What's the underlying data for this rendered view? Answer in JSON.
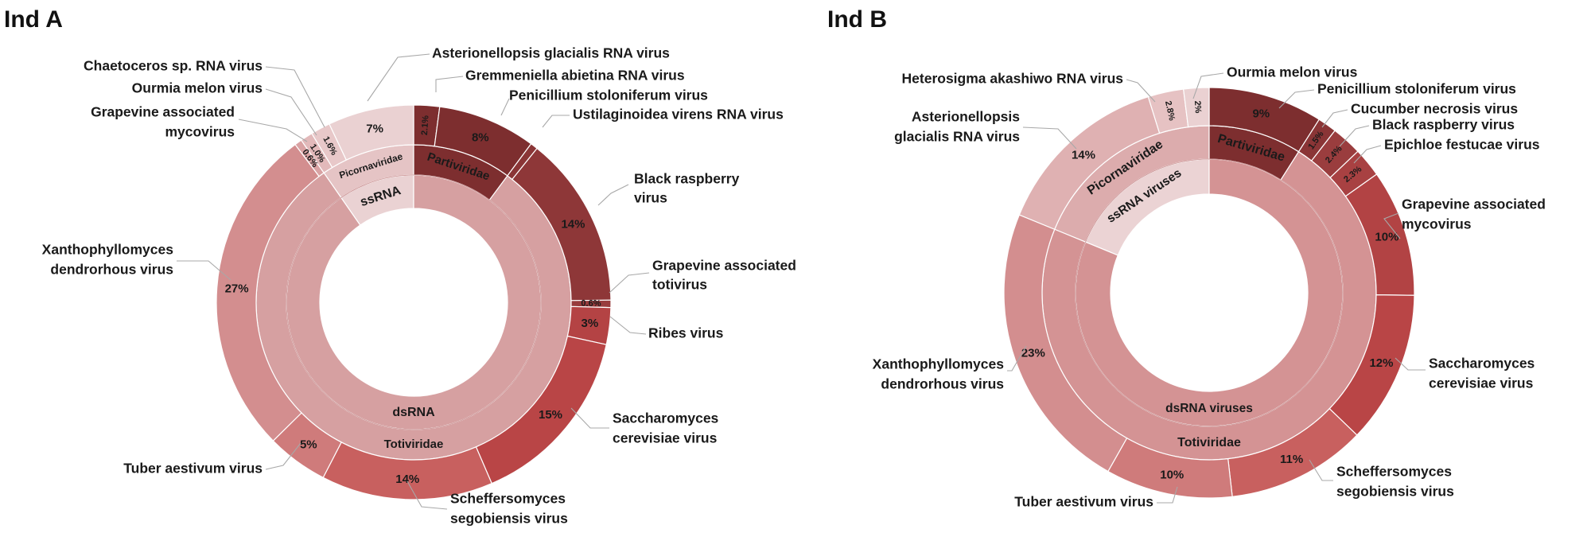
{
  "chart_data": [
    {
      "type": "pie",
      "title": "Ind A",
      "inner_ring": [
        {
          "label": "ssRNA",
          "from": 0.0,
          "to": 0.0
        },
        {
          "label": "dsRNA",
          "from": 0.0,
          "to": 0.0
        }
      ],
      "middle_ring": [
        {
          "label": "Picornaviridae",
          "group": "ssRNA"
        },
        {
          "label": "Partiviridae",
          "group": "dsRNA"
        },
        {
          "label": "Totiviridae",
          "group": "dsRNA"
        }
      ],
      "slices": [
        {
          "name": "Gremmeniella abietina RNA virus",
          "pct_label": "2.1%",
          "value": 2.1,
          "family": "Partiviridae",
          "color": "#7d2e2f"
        },
        {
          "name": "Penicillium stoloniferum virus",
          "pct_label": "8%",
          "value": 8,
          "family": "Partiviridae",
          "color": "#7d2e2f"
        },
        {
          "name": "Ustilaginoidea virens RNA virus",
          "pct_label": "",
          "value": 0.6,
          "family": "Totiviridae",
          "color": "#8a3536"
        },
        {
          "name": "Black raspberry virus",
          "pct_label": "14%",
          "value": 14,
          "family": "Totiviridae",
          "color": "#8e3738"
        },
        {
          "name": "Grapevine associated totivirus",
          "pct_label": "0.6%",
          "value": 0.6,
          "family": "Totiviridae",
          "color": "#983c3d"
        },
        {
          "name": "Ribes virus",
          "pct_label": "3%",
          "value": 3,
          "family": "Totiviridae",
          "color": "#b44344"
        },
        {
          "name": "Saccharomyces cerevisiae virus",
          "pct_label": "15%",
          "value": 15,
          "family": "Totiviridae",
          "color": "#b94546"
        },
        {
          "name": "Scheffersomyces segobiensis virus",
          "pct_label": "14%",
          "value": 14,
          "family": "Totiviridae",
          "color": "#c8605f"
        },
        {
          "name": "Tuber aestivum virus",
          "pct_label": "5%",
          "value": 5,
          "family": "Totiviridae",
          "color": "#cf7b7b"
        },
        {
          "name": "Xanthophyllomyces dendrorhous virus",
          "pct_label": "27%",
          "value": 27,
          "family": "Totiviridae",
          "color": "#d38e8f"
        },
        {
          "name": "Grapevine associated mycovirus",
          "pct_label": "0.6%",
          "value": 0.6,
          "family": "Totiviridae",
          "color": "#d9a2a3"
        },
        {
          "name": "Ourmia melon virus",
          "pct_label": "1.0%",
          "value": 1.0,
          "family": "Picornaviridae",
          "color": "#e2b9ba"
        },
        {
          "name": "Chaetoceros sp. RNA virus",
          "pct_label": "1.6%",
          "value": 1.6,
          "family": "Picornaviridae",
          "color": "#e8c8c9"
        },
        {
          "name": "Asterionellopsis glacialis RNA virus",
          "pct_label": "7%",
          "value": 7,
          "family": "Picornaviridae",
          "color": "#ead1d2"
        }
      ]
    },
    {
      "type": "pie",
      "title": "Ind B",
      "inner_ring": [
        {
          "label": "ssRNA viruses"
        },
        {
          "label": "dsRNA viruses"
        }
      ],
      "middle_ring": [
        {
          "label": "Picornaviridae",
          "group": "ssRNA viruses"
        },
        {
          "label": "Partiviridae",
          "group": "dsRNA viruses"
        },
        {
          "label": "Totiviridae",
          "group": "dsRNA viruses"
        }
      ],
      "slices": [
        {
          "name": "Penicillium stoloniferum virus",
          "pct_label": "9%",
          "value": 9,
          "family": "Partiviridae",
          "color": "#7d2e2f"
        },
        {
          "name": "Cucumber necrosis virus",
          "pct_label": "1.5%",
          "value": 1.5,
          "family": "Totiviridae",
          "color": "#8a3536"
        },
        {
          "name": "Black raspberry virus",
          "pct_label": "2.4%",
          "value": 2.4,
          "family": "Totiviridae",
          "color": "#9a3d3e"
        },
        {
          "name": "Epichloe festucae virus",
          "pct_label": "2.3%",
          "value": 2.3,
          "family": "Totiviridae",
          "color": "#a84142"
        },
        {
          "name": "Grapevine associated mycovirus",
          "pct_label": "10%",
          "value": 10,
          "family": "Totiviridae",
          "color": "#b24344"
        },
        {
          "name": "Saccharomyces cerevisiae virus",
          "pct_label": "12%",
          "value": 12,
          "family": "Totiviridae",
          "color": "#b94546"
        },
        {
          "name": "Scheffersomyces segobiensis virus",
          "pct_label": "11%",
          "value": 11,
          "family": "Totiviridae",
          "color": "#c8605f"
        },
        {
          "name": "Tuber aestivum virus",
          "pct_label": "10%",
          "value": 10,
          "family": "Totiviridae",
          "color": "#cf7b7b"
        },
        {
          "name": "Xanthophyllomyces dendrorhous virus",
          "pct_label": "23%",
          "value": 23,
          "family": "Totiviridae",
          "color": "#d38e8f"
        },
        {
          "name": "Asterionellopsis glacialis RNA virus",
          "pct_label": "14%",
          "value": 14,
          "family": "Picornaviridae",
          "color": "#dfb1b2"
        },
        {
          "name": "Heterosigma akashiwo RNA virus",
          "pct_label": "2.8%",
          "value": 2.8,
          "family": "Picornaviridae",
          "color": "#e6c2c3"
        },
        {
          "name": "Ourmia melon virus",
          "pct_label": "2%",
          "value": 2,
          "family": "Picornaviridae",
          "color": "#ead1d2"
        }
      ]
    }
  ]
}
